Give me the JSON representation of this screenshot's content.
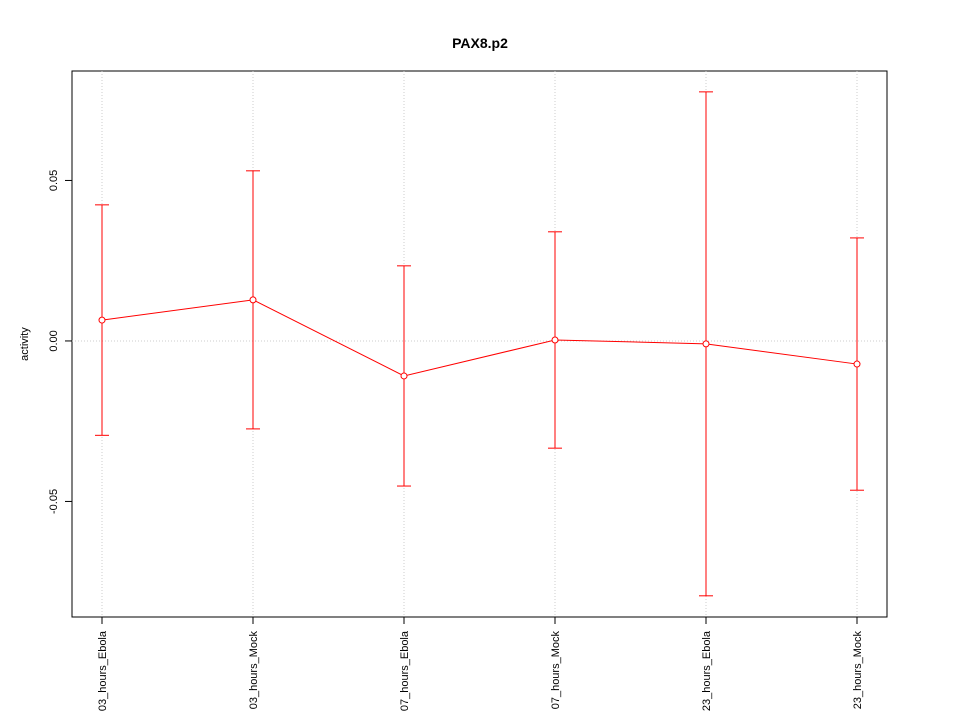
{
  "chart_data": {
    "type": "errorbar",
    "title": "PAX8.p2",
    "ylabel": "activity",
    "categories": [
      "03_hours_Ebola",
      "03_hours_Mock",
      "07_hours_Ebola",
      "07_hours_Mock",
      "23_hours_Ebola",
      "23_hours_Mock"
    ],
    "series": [
      {
        "color": "#ff0000",
        "values": [
          0.0065,
          0.0128,
          -0.0109,
          0.0003,
          -0.0009,
          -0.0072
        ],
        "errors": [
          0.0359,
          0.0402,
          0.0343,
          0.0337,
          0.0785,
          0.0393
        ]
      }
    ],
    "ylim": [
      -0.086,
      0.0841
    ],
    "yticks": [
      -0.05,
      {
        "value": 0,
        "label": "0.00"
      },
      0.05
    ],
    "grid": true,
    "hline": 0
  }
}
